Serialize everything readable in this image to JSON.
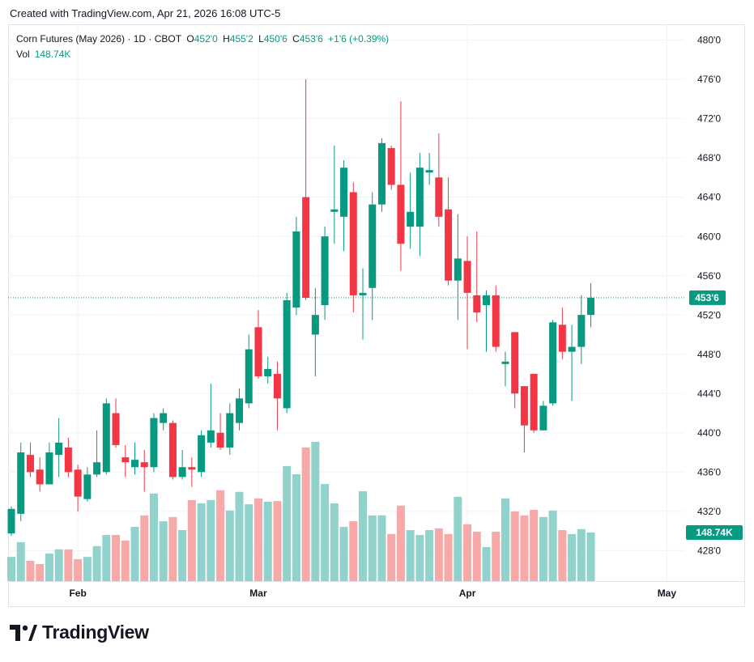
{
  "header": {
    "stamp": "Created with TradingView.com, Apr 21, 2026 16:08 UTC-5"
  },
  "logo": "TradingView",
  "chart_data": {
    "type": "candlestick",
    "title": "Corn Futures (May 2026) · 1D · CBOT",
    "ohlc_legend": {
      "o_label": "O",
      "o": "452'0",
      "h_label": "H",
      "h": "455'2",
      "l_label": "L",
      "l": "450'6",
      "c_label": "C",
      "c": "453'6",
      "change": "+1'6 (+0.39%)"
    },
    "up_color": "#089981",
    "down_color": "#f23645",
    "volume_up_color": "#92d2cc",
    "volume_down_color": "#f7a9a7",
    "grid": true,
    "ylim": [
      424.9,
      481.6
    ],
    "yticks": [
      {
        "value": 428,
        "label": "428'0"
      },
      {
        "value": 432,
        "label": "432'0"
      },
      {
        "value": 436,
        "label": "436'0"
      },
      {
        "value": 440,
        "label": "440'0"
      },
      {
        "value": 444,
        "label": "444'0"
      },
      {
        "value": 448,
        "label": "448'0"
      },
      {
        "value": 452,
        "label": "452'0"
      },
      {
        "value": 456,
        "label": "456'0"
      },
      {
        "value": 460,
        "label": "460'0"
      },
      {
        "value": 464,
        "label": "464'0"
      },
      {
        "value": 468,
        "label": "468'0"
      },
      {
        "value": 472,
        "label": "472'0"
      },
      {
        "value": 476,
        "label": "476'0"
      },
      {
        "value": 480,
        "label": "480'0"
      }
    ],
    "last_price": {
      "value": 453.75,
      "label": "453'6"
    },
    "categories": [
      null,
      null,
      null,
      null,
      null,
      null,
      null,
      "Feb",
      null,
      null,
      null,
      null,
      null,
      null,
      null,
      null,
      null,
      null,
      null,
      null,
      null,
      null,
      null,
      null,
      null,
      null,
      "Mar",
      null,
      null,
      null,
      null,
      null,
      null,
      null,
      null,
      null,
      null,
      null,
      null,
      null,
      null,
      null,
      null,
      null,
      null,
      null,
      null,
      null,
      "Apr",
      null,
      null,
      null,
      null,
      null,
      null,
      null,
      null,
      null,
      null,
      null,
      null,
      null,
      null,
      null,
      null,
      null,
      null,
      null,
      null,
      "May"
    ],
    "open": [
      429.75,
      431.75,
      437.75,
      436.25,
      434.75,
      437.75,
      438.5,
      436.25,
      433.25,
      435.75,
      436,
      442,
      437.5,
      436.5,
      437,
      436.5,
      441,
      441,
      435.5,
      436.5,
      436,
      439,
      440,
      438.5,
      441,
      443,
      450.75,
      445.75,
      446,
      442.5,
      452.75,
      464,
      450,
      453,
      462.5,
      462,
      464.5,
      454,
      454.75,
      463.25,
      469,
      465.25,
      461,
      461,
      466.5,
      466,
      462.75,
      455.5,
      457.5,
      454,
      453,
      454,
      447,
      450.25,
      444.75,
      446,
      440.25,
      443,
      451,
      448.25,
      448.75,
      452,
      null,
      null,
      null,
      null,
      null,
      null,
      null,
      null
    ],
    "high": [
      432.5,
      439,
      439,
      437.5,
      439,
      441.5,
      439.5,
      436.75,
      436.5,
      440.25,
      443.5,
      443.5,
      438.75,
      439,
      438.25,
      442,
      442.5,
      441.25,
      438.25,
      437.5,
      440.25,
      445,
      442,
      443,
      444.5,
      450,
      452.5,
      447.75,
      447.25,
      454.25,
      462,
      476,
      454.75,
      461,
      469.25,
      467.75,
      465.5,
      456.75,
      464.5,
      470,
      469.25,
      473.75,
      466.5,
      468.5,
      468.5,
      470.5,
      466,
      462.25,
      460,
      460.5,
      454.5,
      455,
      448.25,
      450.25,
      444.75,
      446,
      443.25,
      451.5,
      452.75,
      451,
      454,
      455.25,
      null,
      null,
      null,
      null,
      null,
      null,
      null,
      null
    ],
    "low": [
      429.5,
      431,
      435.5,
      434,
      434.75,
      435.5,
      435.5,
      432,
      433,
      435.5,
      435.75,
      438.5,
      435.5,
      435.75,
      434,
      436,
      440.25,
      435.25,
      435.25,
      434.5,
      435.5,
      438.5,
      438.25,
      437.75,
      440.25,
      442.5,
      445.5,
      445,
      440.25,
      442,
      452,
      453.5,
      445.75,
      451.5,
      459.25,
      458.5,
      452.25,
      449.5,
      451.5,
      462.5,
      464.75,
      456.5,
      458.75,
      458,
      465.25,
      461,
      455,
      451.5,
      448.5,
      451.25,
      448.25,
      448.25,
      444.75,
      442.5,
      438,
      440,
      440.25,
      442.75,
      447.5,
      443.25,
      447,
      450.75,
      null,
      null,
      null,
      null,
      null,
      null,
      null,
      null
    ],
    "close": [
      432.25,
      438,
      436,
      434.75,
      438,
      439,
      436,
      433.5,
      435.75,
      437,
      443,
      438.75,
      437,
      437.25,
      436.5,
      441.5,
      442,
      435.5,
      436.5,
      436.25,
      439.75,
      440.25,
      438.5,
      442,
      443.5,
      448.5,
      445.75,
      446.5,
      443.5,
      453.5,
      460.5,
      453.75,
      452,
      460,
      462.75,
      467,
      454,
      454.25,
      463.25,
      469.5,
      465.25,
      459.25,
      462.5,
      467,
      466.75,
      462,
      455.5,
      457.75,
      454.25,
      452.25,
      454,
      448.75,
      447.25,
      444,
      440.75,
      440.25,
      442.75,
      451.25,
      448.25,
      448.75,
      452,
      453.75,
      null,
      null,
      null,
      null,
      null,
      null,
      null,
      null
    ],
    "volume": {
      "name": "Vol",
      "values": [
        74000,
        119000,
        62000,
        52000,
        84000,
        97000,
        97000,
        67000,
        74000,
        107000,
        141000,
        141000,
        124000,
        166000,
        201000,
        268000,
        183000,
        196000,
        156000,
        248000,
        238000,
        248000,
        278000,
        216000,
        273000,
        235000,
        253000,
        243000,
        245000,
        352000,
        327000,
        409000,
        426000,
        297000,
        238000,
        166000,
        183000,
        275000,
        201000,
        201000,
        144000,
        231000,
        156000,
        141000,
        156000,
        161000,
        144000,
        258000,
        174000,
        151000,
        104000,
        151000,
        253000,
        213000,
        201000,
        218000,
        196000,
        216000,
        156000,
        144000,
        159000,
        148740,
        null,
        null,
        null,
        null,
        null,
        null,
        null,
        null
      ]
    },
    "last_volume": {
      "value": 148740,
      "label": "148.74K"
    }
  }
}
